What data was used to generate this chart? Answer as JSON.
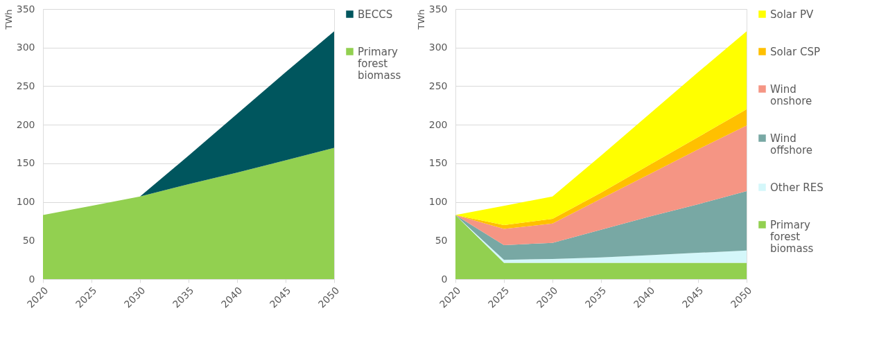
{
  "chart_data": [
    {
      "type": "area",
      "stacked": true,
      "x": [
        2020,
        2025,
        2030,
        2035,
        2040,
        2045,
        2050
      ],
      "ylabel": "TWh",
      "xlim": [
        2020,
        2050
      ],
      "xticks": [
        2020,
        2025,
        2030,
        2035,
        2040,
        2045,
        2050
      ],
      "ylim": [
        0,
        350
      ],
      "yticks": [
        0,
        50,
        100,
        150,
        200,
        250,
        300,
        350
      ],
      "grid": "y",
      "legend": "right",
      "series": [
        {
          "name": "Primary forest biomass",
          "color": "#92d050",
          "values": [
            83,
            95,
            107,
            123,
            138,
            154,
            170
          ]
        },
        {
          "name": "BECCS",
          "color": "#00565e",
          "values": [
            0,
            0,
            0,
            37,
            76,
            114,
            151
          ]
        }
      ]
    },
    {
      "type": "area",
      "stacked": true,
      "x": [
        2020,
        2025,
        2030,
        2035,
        2040,
        2045,
        2050
      ],
      "ylabel": "TWh",
      "xlim": [
        2020,
        2050
      ],
      "xticks": [
        2020,
        2025,
        2030,
        2035,
        2040,
        2045,
        2050
      ],
      "ylim": [
        0,
        350
      ],
      "yticks": [
        0,
        50,
        100,
        150,
        200,
        250,
        300,
        350
      ],
      "grid": "y",
      "legend": "right",
      "series": [
        {
          "name": "Primary forest biomass",
          "color": "#92d050",
          "values": [
            83,
            21,
            21,
            21,
            21,
            21,
            21
          ]
        },
        {
          "name": "Other RES",
          "color": "#d4f7fa",
          "values": [
            0,
            4,
            5,
            7,
            10,
            13,
            16
          ]
        },
        {
          "name": "Wind offshore",
          "color": "#78a8a4",
          "values": [
            0,
            19,
            21,
            36,
            50,
            63,
            77
          ]
        },
        {
          "name": "Wind onshore",
          "color": "#f59584",
          "values": [
            0,
            21,
            25,
            40,
            55,
            71,
            85
          ]
        },
        {
          "name": "Solar CSP",
          "color": "#ffc000",
          "values": [
            0,
            5,
            6,
            8,
            12,
            16,
            21
          ]
        },
        {
          "name": "Solar PV",
          "color": "#ffff00",
          "values": [
            0,
            25,
            29,
            48,
            66,
            84,
            101
          ]
        }
      ]
    }
  ]
}
